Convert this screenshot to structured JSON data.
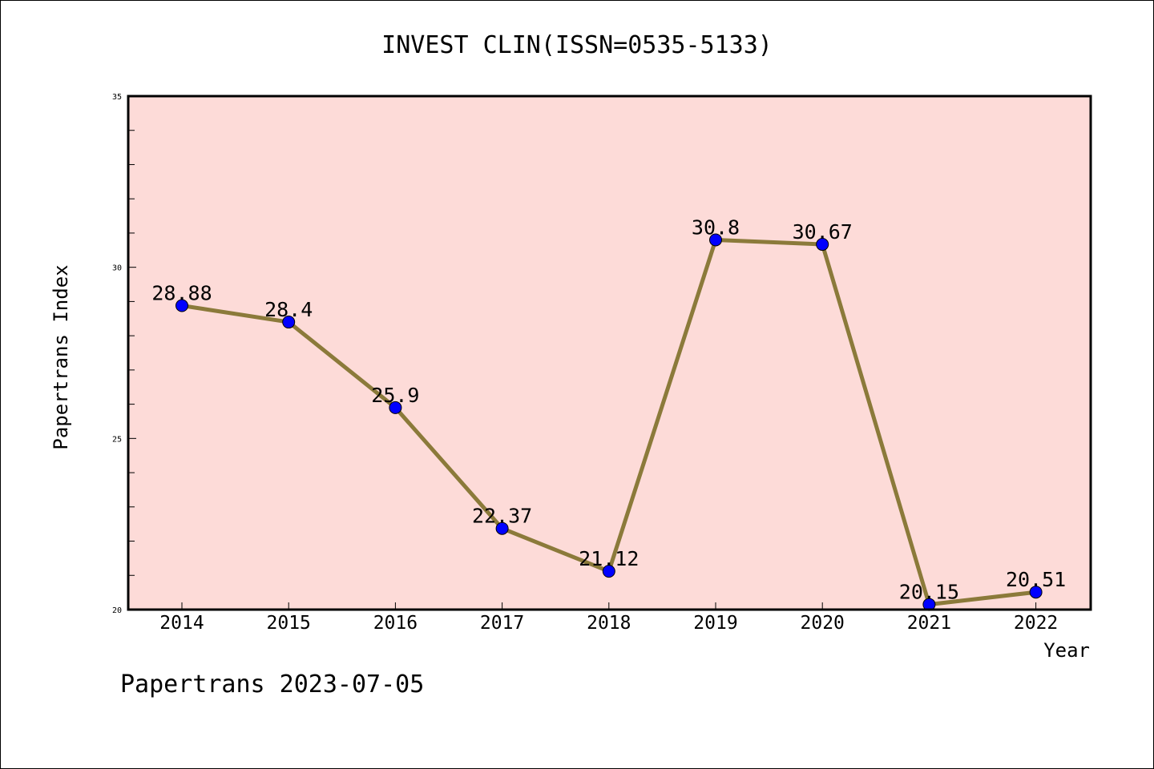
{
  "chart_data": {
    "type": "line",
    "title": "INVEST CLIN(ISSN=0535-5133)",
    "xlabel": "Year",
    "ylabel": "Papertrans Index",
    "categories": [
      "2014",
      "2015",
      "2016",
      "2017",
      "2018",
      "2019",
      "2020",
      "2021",
      "2022"
    ],
    "series": [
      {
        "values": [
          28.88,
          28.4,
          25.9,
          22.37,
          21.12,
          30.8,
          30.67,
          20.15,
          20.51
        ],
        "data_labels": [
          "28.88",
          "28.4",
          "25.9",
          "22.37",
          "21.12",
          "30.8",
          "30.67",
          "20.15",
          "20.51"
        ],
        "line_color": "#8b7a3a",
        "marker_color": "#0000ff"
      }
    ],
    "ylim": [
      20,
      35
    ],
    "y_ticks": [
      20,
      25,
      30,
      35
    ],
    "y_tick_labels": [
      "20",
      "25",
      "30",
      "35"
    ],
    "plot_background": "#fddbd8",
    "grid": false,
    "legend": "none"
  },
  "footer": "Papertrans 2023-07-05"
}
